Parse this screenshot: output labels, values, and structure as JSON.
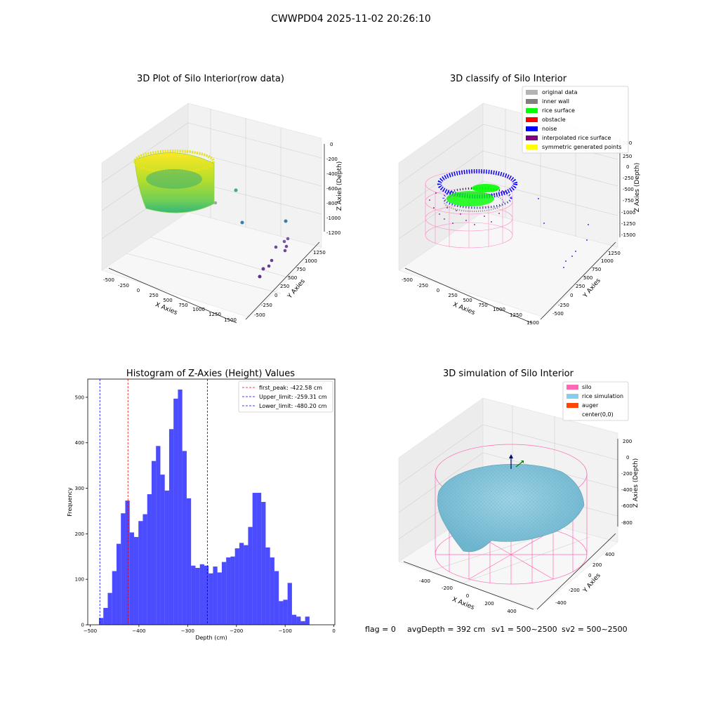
{
  "suptitle": "CWWPD04 2025-11-02 20:26:10",
  "footer": {
    "flag": "flag = 0",
    "avgdepth": "avgDepth = 392 cm",
    "sv1": "sv1 = 500~2500",
    "sv2": "sv2 = 500~2500"
  },
  "panels": {
    "raw": {
      "title": "3D Plot of Silo Interior(row data)",
      "xlabel": "X Axies",
      "ylabel": "Y Axies",
      "zlabel": "Z Axies (Depth)",
      "xticks": [
        "-500",
        "-250",
        "0",
        "250",
        "500",
        "750",
        "1000",
        "1250",
        "1500"
      ],
      "yticks": [
        "-500",
        "-250",
        "0",
        "250",
        "500",
        "750",
        "1000",
        "1250"
      ],
      "zticks": [
        "0",
        "-200",
        "-400",
        "-600",
        "-800",
        "-1000",
        "-1200"
      ]
    },
    "classify": {
      "title": "3D classify of Silo Interior",
      "xlabel": "X Axies",
      "ylabel": "Y Axies",
      "zlabel": "Z Axies (Depth)",
      "xticks": [
        "-500",
        "-250",
        "0",
        "250",
        "500",
        "750",
        "1000",
        "1250",
        "1500"
      ],
      "yticks": [
        "-500",
        "-250",
        "0",
        "250",
        "500",
        "750",
        "1000",
        "1250"
      ],
      "zticks": [
        "500",
        "250",
        "0",
        "-250",
        "-500",
        "-750",
        "-1000",
        "-1250",
        "-1500"
      ],
      "legend": [
        {
          "label": "original data",
          "color": "#b3b3b3"
        },
        {
          "label": "inner wall",
          "color": "#808080"
        },
        {
          "label": "rice surface",
          "color": "#00ff00"
        },
        {
          "label": "obstacle",
          "color": "#ff0000"
        },
        {
          "label": "noise",
          "color": "#0000ff"
        },
        {
          "label": "interpolated rice surface",
          "color": "#800080"
        },
        {
          "label": "symmetric generated points",
          "color": "#ffff00"
        }
      ]
    },
    "simulation": {
      "title": "3D simulation of Silo Interior",
      "xlabel": "X Axies",
      "ylabel": "Y Axies",
      "zlabel": "Z Axies (Depth)",
      "xticks": [
        "-400",
        "-200",
        "0",
        "200",
        "400"
      ],
      "yticks": [
        "-400",
        "-200",
        "0",
        "200",
        "400"
      ],
      "zticks": [
        "200",
        "0",
        "-200",
        "-400",
        "-600",
        "-800"
      ],
      "legend": [
        {
          "label": "silo",
          "color": "#ff69b4"
        },
        {
          "label": "rice simulation",
          "color": "#87ceeb"
        },
        {
          "label": "auger",
          "color": "#ff4500"
        },
        {
          "label": "center(0,0)",
          "color": "#ffffff"
        }
      ]
    }
  },
  "chart_data": [
    {
      "type": "bar",
      "title": "Histogram of Z-Axies (Height) Values",
      "xlabel": "Depth (cm)",
      "ylabel": "Frequency",
      "xlim": [
        -505,
        2
      ],
      "ylim": [
        0,
        540
      ],
      "xticks": [
        -500,
        -400,
        -300,
        -200,
        -100,
        0
      ],
      "yticks": [
        0,
        100,
        200,
        300,
        400,
        500
      ],
      "bin_start": -482,
      "bin_width": 9,
      "values": [
        15,
        37,
        70,
        118,
        178,
        245,
        273,
        203,
        193,
        228,
        243,
        287,
        360,
        393,
        330,
        295,
        430,
        497,
        517,
        382,
        278,
        130,
        125,
        133,
        130,
        113,
        128,
        115,
        138,
        148,
        150,
        168,
        180,
        175,
        215,
        290,
        290,
        270,
        170,
        148,
        118,
        52,
        55,
        92,
        22,
        18,
        8,
        18
      ],
      "color": "#0000ff",
      "vlines": [
        {
          "label": "first_peak: -422.58 cm",
          "x": -422.58,
          "color": "#ff0000"
        },
        {
          "label": "Upper_limit: -259.31 cm",
          "x": -259.31,
          "color": "#0000ff"
        },
        {
          "label": "Lower_limit: -480.20 cm",
          "x": -480.2,
          "color": "#0000ff"
        }
      ],
      "legend_position": "upper right"
    }
  ]
}
